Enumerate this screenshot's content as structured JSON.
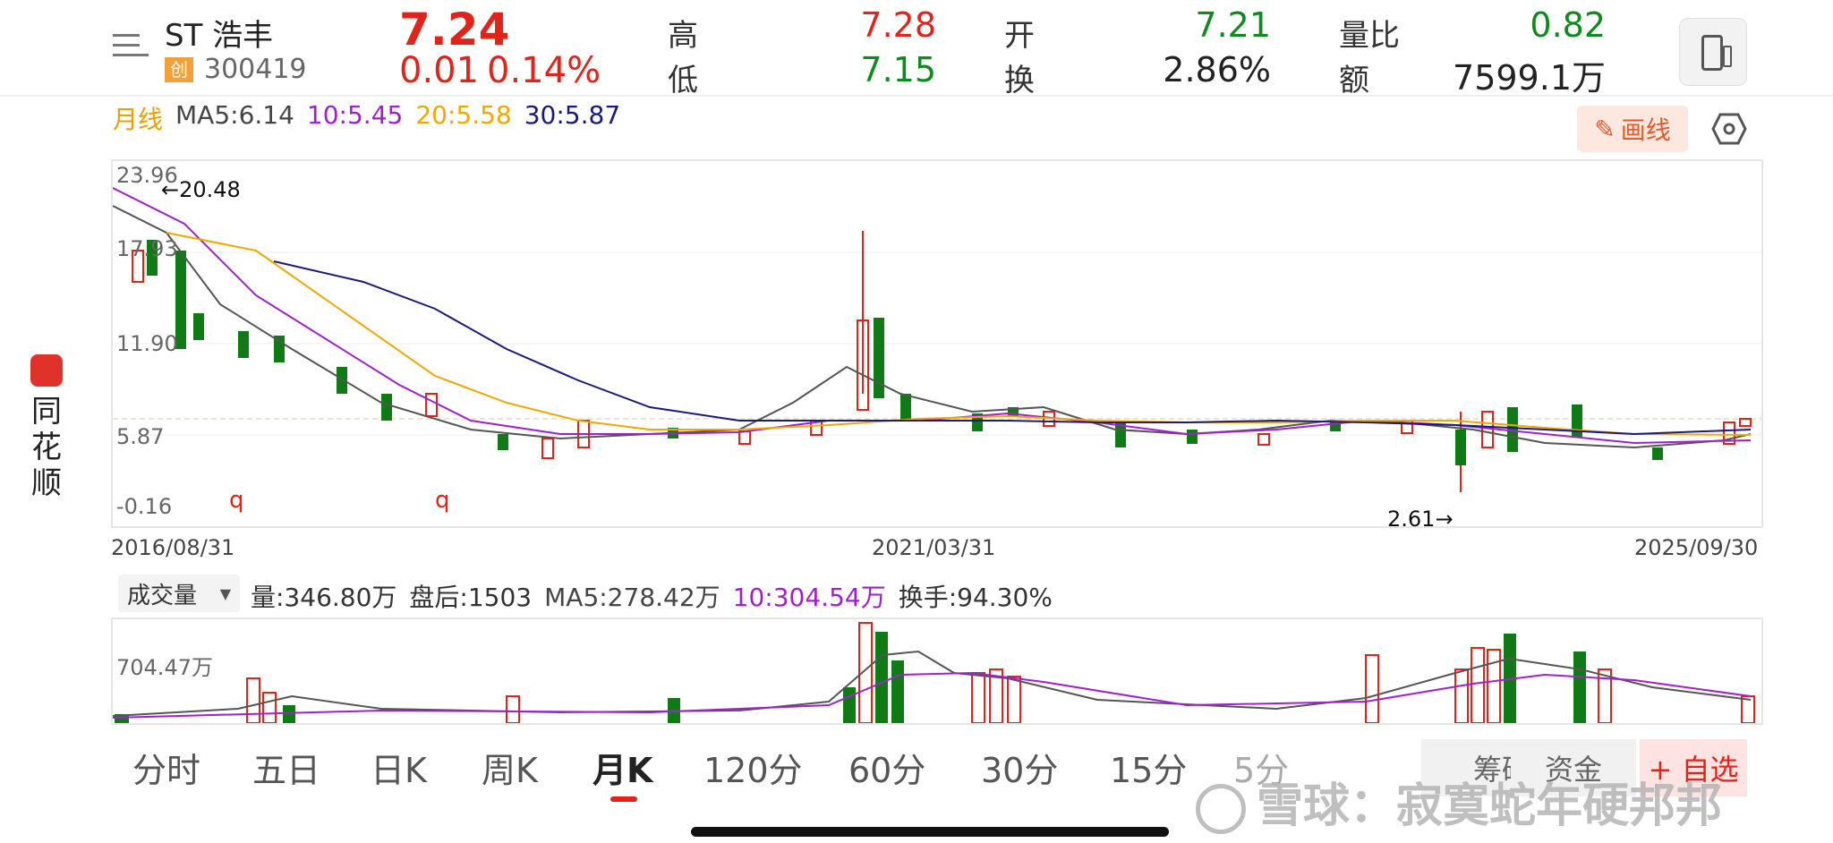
{
  "stock": {
    "name": "ST 浩丰",
    "badge": "创",
    "code": "300419",
    "price": "7.24",
    "change": "0.01",
    "change_pct": "0.14%"
  },
  "quote": {
    "high_label": "高",
    "high": "7.28",
    "low_label": "低",
    "low": "7.15",
    "open_label": "开",
    "open": "7.21",
    "turnover_label": "换",
    "turnover": "2.86%",
    "vol_ratio_label": "量比",
    "vol_ratio": "0.82",
    "amount_label": "额",
    "amount": "7599.1万"
  },
  "brand": [
    "同",
    "花",
    "顺"
  ],
  "ma_legend": {
    "period": "月线",
    "ma5": "MA5:6.14",
    "ma10": "10:5.45",
    "ma20": "20:5.58",
    "ma30": "30:5.87"
  },
  "colors": {
    "up": "#e2231a",
    "down": "#0f7a16",
    "ma5": "#555555",
    "ma10": "#a020d0",
    "ma20": "#f0a800",
    "ma30": "#1a1a7a"
  },
  "toolbar": {
    "draw_label": "画线",
    "draw_icon": "pencil-icon",
    "settings_icon": "hexagon-settings-icon",
    "phone_icon": "phone-icon"
  },
  "chart": {
    "y_ticks": [
      "23.96",
      "17.93",
      "11.90",
      "5.87",
      "-0.16"
    ],
    "max_marker": "←20.48",
    "min_marker": "2.61→",
    "q_marker": "q",
    "dates": [
      "2016/08/31",
      "2021/03/31",
      "2025/09/30"
    ]
  },
  "volume": {
    "selector": "成交量",
    "vol": "量:346.80万",
    "after_hours": "盘后:1503",
    "ma5": "MA5:278.42万",
    "ma10": "10:304.54万",
    "turnover": "换手:94.30%",
    "y_tick": "704.47万"
  },
  "tabs": [
    "分时",
    "五日",
    "日K",
    "周K",
    "月K",
    "120分",
    "60分",
    "30分",
    "15分",
    "5分"
  ],
  "active_tab": "月K",
  "bottom_buttons": {
    "chips": "筹码",
    "funds": "资金",
    "add_watch": "+ 自选"
  },
  "watermark": "雪球：寂寞蛇年硬邦邦"
}
